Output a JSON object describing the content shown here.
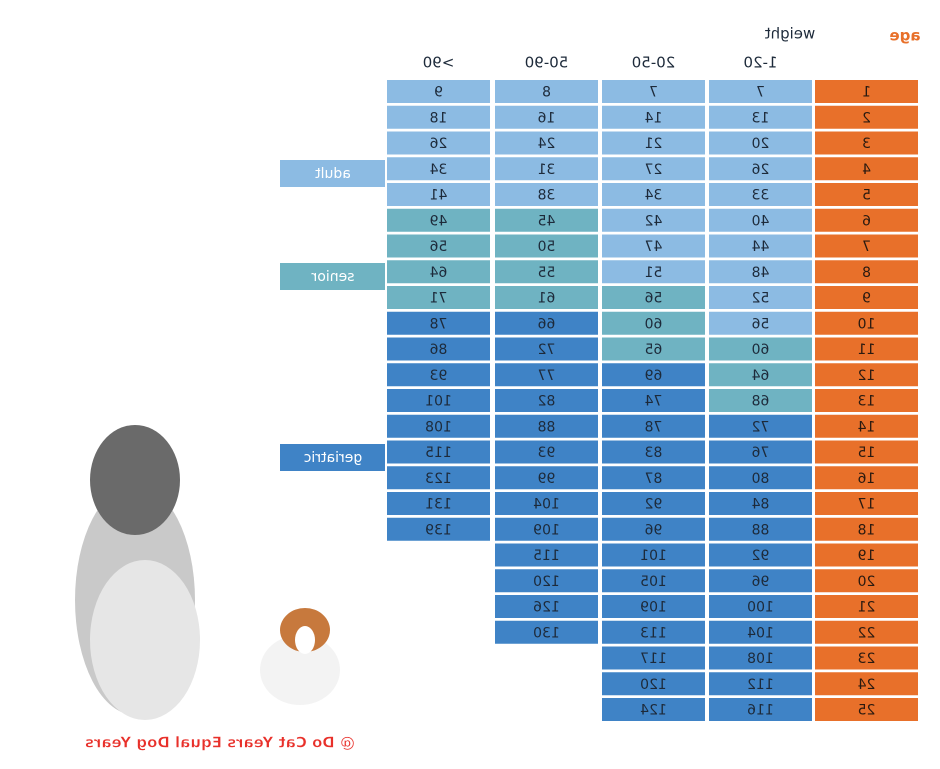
{
  "header": {
    "age_label": "age",
    "weight_label": "weight"
  },
  "columns": [
    "1-20",
    "20-50",
    "50-90",
    ">90"
  ],
  "ages": [
    1,
    2,
    3,
    4,
    5,
    6,
    7,
    8,
    9,
    10,
    11,
    12,
    13,
    14,
    15,
    16,
    17,
    18,
    19,
    20,
    21,
    22,
    23,
    24,
    25
  ],
  "table": {
    "columns": [
      [
        7,
        13,
        20,
        26,
        33,
        40,
        44,
        48,
        52,
        56,
        60,
        64,
        68,
        72,
        76,
        80,
        84,
        88,
        92,
        96,
        100,
        104,
        108,
        112,
        116
      ],
      [
        7,
        14,
        21,
        27,
        34,
        42,
        47,
        51,
        56,
        60,
        65,
        69,
        74,
        78,
        83,
        87,
        92,
        96,
        101,
        105,
        109,
        113,
        117,
        120,
        124
      ],
      [
        8,
        16,
        24,
        31,
        38,
        45,
        50,
        55,
        61,
        66,
        72,
        77,
        82,
        88,
        93,
        99,
        104,
        109,
        115,
        120,
        126,
        130
      ],
      [
        9,
        18,
        26,
        34,
        41,
        49,
        56,
        64,
        71,
        78,
        86,
        93,
        101,
        108,
        115,
        123,
        131,
        139
      ]
    ]
  },
  "stages": [
    "adult",
    "senior",
    "geriatric"
  ],
  "caption": "@ Do Cat Years Equal Dog Years"
}
